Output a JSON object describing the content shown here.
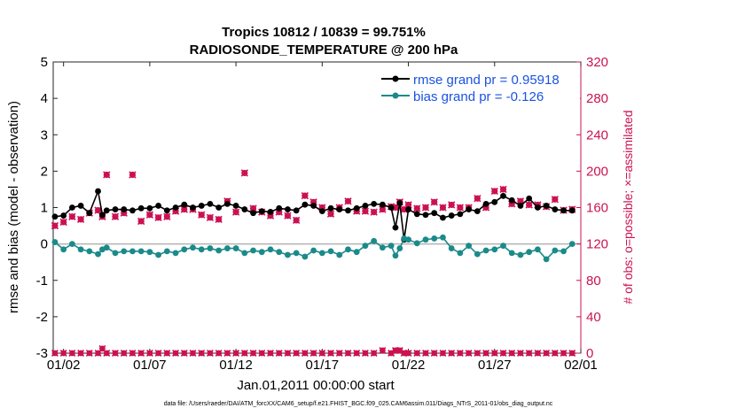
{
  "chart_data": {
    "type": "line",
    "title": "Tropics 10812 / 10839 = 99.751%",
    "subtitle": "RADIOSONDE_TEMPERATURE @ 200 hPa",
    "xlabel": "Jan.01,2011 00:00:00 start",
    "ylabel": "rmse and bias (model - observation)",
    "y2label": "# of obs: o=possible; ×=assimilated",
    "footnote": "data file: /Users/raeder/DAI/ATM_forcXX/CAM6_setup/f.e21.FHIST_BGC.f09_025.CAM6assim.011/Diags_NTrS_2011-01/obs_diag_output.nc",
    "x_ticks": [
      "01/02",
      "01/07",
      "01/12",
      "01/17",
      "01/22",
      "01/27",
      "02/01"
    ],
    "y_ticks": [
      "-3",
      "-2",
      "-1",
      "0",
      "1",
      "2",
      "3",
      "4",
      "5"
    ],
    "y2_ticks": [
      "0",
      "40",
      "80",
      "120",
      "160",
      "200",
      "240",
      "280",
      "320"
    ],
    "ylim": [
      -3,
      5
    ],
    "y2lim": [
      0,
      320
    ],
    "xlim": [
      0.4,
      31.0
    ],
    "legend_location": "top-right",
    "x": [
      0.5,
      1.0,
      1.5,
      2.0,
      2.5,
      3.0,
      3.25,
      3.5,
      4.0,
      4.5,
      5.0,
      5.5,
      6.0,
      6.5,
      7.0,
      7.5,
      8.0,
      8.5,
      9.0,
      9.5,
      10.0,
      10.5,
      11.0,
      11.5,
      12.0,
      12.5,
      13.0,
      13.5,
      14.0,
      14.5,
      15.0,
      15.5,
      16.0,
      16.5,
      17.0,
      17.5,
      18.0,
      18.5,
      19.0,
      19.5,
      20.0,
      20.25,
      20.5,
      20.75,
      21.0,
      21.5,
      22.0,
      22.5,
      23.0,
      23.5,
      24.0,
      24.5,
      25.0,
      25.5,
      26.0,
      26.5,
      27.0,
      27.5,
      28.0,
      28.5,
      29.0,
      29.5,
      30.0,
      30.5
    ],
    "series": [
      {
        "name": "rmse grand pr = 0.95918",
        "color": "#000000",
        "values": [
          0.75,
          0.78,
          1.0,
          1.05,
          0.85,
          1.45,
          0.8,
          0.92,
          0.95,
          0.95,
          0.92,
          0.98,
          0.98,
          1.05,
          0.92,
          1.0,
          1.08,
          1.0,
          1.05,
          1.1,
          1.0,
          1.1,
          1.05,
          0.95,
          0.85,
          0.9,
          0.88,
          0.98,
          0.95,
          0.92,
          1.08,
          1.05,
          0.9,
          0.98,
          0.95,
          0.92,
          0.98,
          1.05,
          1.1,
          1.08,
          1.0,
          0.45,
          1.12,
          0.12,
          0.95,
          0.82,
          0.8,
          0.85,
          0.72,
          0.78,
          0.82,
          0.95,
          0.9,
          1.1,
          1.15,
          1.32,
          1.2,
          1.05,
          1.25,
          1.0,
          1.05,
          0.95,
          0.92,
          0.92
        ]
      },
      {
        "name": "bias grand pr = -0.126",
        "color": "#1a8a8a",
        "values": [
          0.05,
          -0.15,
          0.0,
          -0.15,
          -0.2,
          -0.28,
          -0.15,
          -0.1,
          -0.25,
          -0.2,
          -0.2,
          -0.2,
          -0.22,
          -0.3,
          -0.2,
          -0.25,
          -0.15,
          -0.1,
          -0.15,
          -0.12,
          -0.18,
          -0.12,
          -0.12,
          -0.25,
          -0.18,
          -0.22,
          -0.15,
          -0.22,
          -0.3,
          -0.25,
          -0.35,
          -0.18,
          -0.25,
          -0.2,
          -0.3,
          -0.15,
          -0.22,
          -0.05,
          0.08,
          -0.1,
          -0.05,
          -0.32,
          -0.12,
          0.15,
          0.12,
          0.02,
          0.12,
          0.15,
          0.18,
          -0.12,
          -0.25,
          -0.05,
          -0.28,
          -0.18,
          -0.15,
          -0.05,
          -0.25,
          -0.3,
          -0.22,
          -0.15,
          -0.42,
          -0.18,
          -0.2,
          0.0
        ]
      }
    ],
    "obs_possible": {
      "color": "#cc1153",
      "values": [
        140,
        144,
        150,
        147,
        154,
        157,
        150,
        196,
        150,
        154,
        196,
        145,
        152,
        149,
        150,
        156,
        158,
        158,
        152,
        149,
        147,
        167,
        155,
        198,
        159,
        155,
        151,
        155,
        151,
        146,
        173,
        166,
        160,
        153,
        160,
        167,
        156,
        156,
        155,
        158,
        161,
        160,
        166,
        158,
        163,
        159,
        160,
        166,
        160,
        163,
        160,
        160,
        170,
        160,
        178,
        180,
        164,
        167,
        163,
        163,
        161,
        169,
        157,
        158
      ]
    },
    "obs_assimilated": {
      "color": "#cc1153",
      "values": [
        140,
        144,
        150,
        147,
        154,
        157,
        150,
        196,
        150,
        154,
        196,
        145,
        152,
        149,
        150,
        156,
        158,
        158,
        152,
        149,
        147,
        167,
        155,
        198,
        159,
        155,
        151,
        155,
        151,
        146,
        173,
        166,
        160,
        153,
        160,
        167,
        156,
        156,
        155,
        158,
        161,
        160,
        166,
        158,
        163,
        159,
        160,
        166,
        160,
        163,
        160,
        160,
        170,
        160,
        178,
        180,
        164,
        167,
        163,
        163,
        161,
        169,
        157,
        158
      ]
    },
    "obs_bottom": {
      "color": "#cc1153",
      "values": [
        0,
        0,
        0,
        0,
        0,
        0,
        5,
        0,
        0,
        0,
        0,
        0,
        0,
        0,
        0,
        0,
        0,
        0,
        0,
        0,
        0,
        0,
        0,
        0,
        0,
        0,
        0,
        0,
        0,
        0,
        0,
        0,
        0,
        0,
        0,
        0,
        0,
        0,
        0,
        3,
        0,
        3,
        3,
        0,
        0,
        0,
        0,
        0,
        0,
        0,
        0,
        0,
        0,
        0,
        0,
        0,
        0,
        0,
        0,
        0,
        0,
        0,
        0,
        0
      ]
    }
  }
}
